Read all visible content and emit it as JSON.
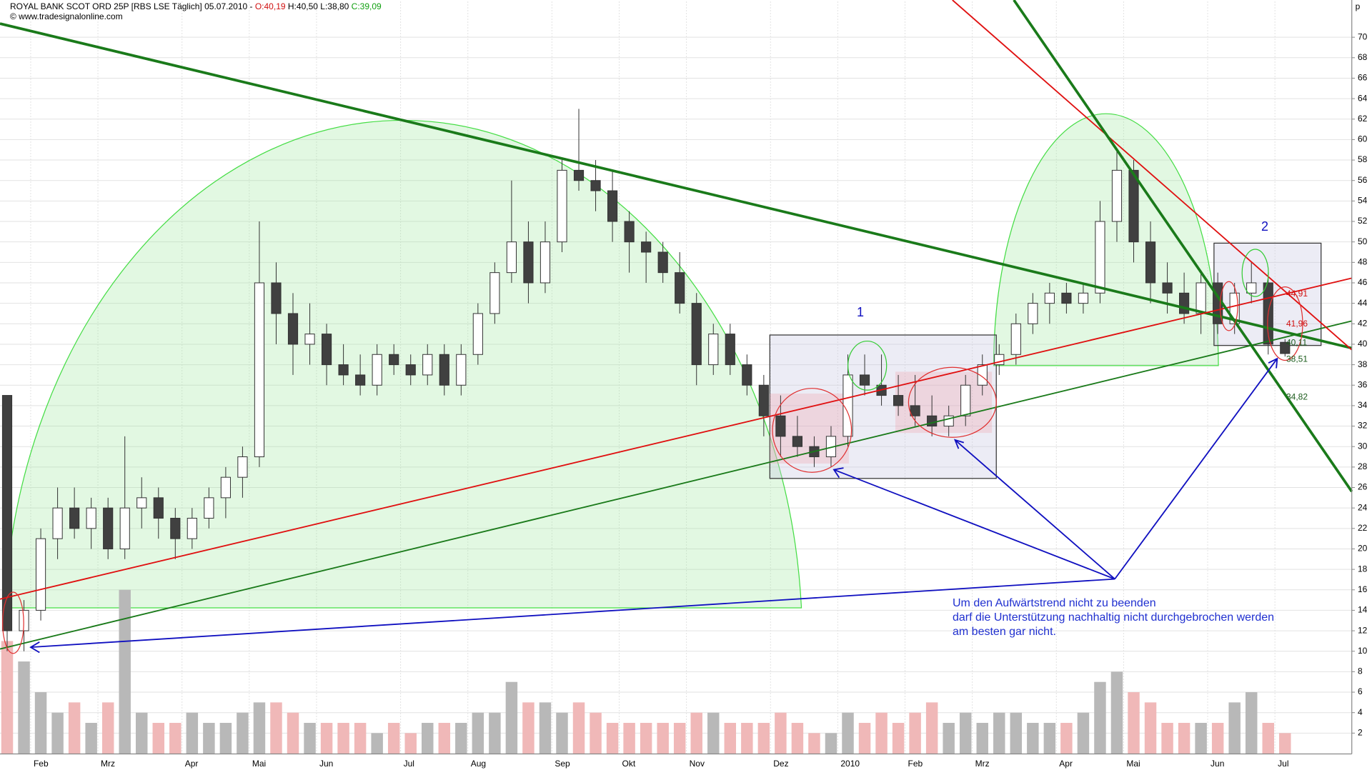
{
  "header": {
    "title": "ROYAL BANK SCOT ORD 25P [RBS LSE  Täglich] 05.07.2010 -",
    "open": "O:40,19",
    "high": "H:40,50",
    "low": "L:38,80",
    "close": "C:39,09",
    "source": "© www.tradesignalonline.com"
  },
  "chart_data": {
    "type": "candlestick",
    "axis_unit": "p",
    "categories": [
      null,
      null,
      "Feb",
      null,
      null,
      null,
      "Mrz",
      null,
      null,
      null,
      null,
      "Apr",
      null,
      null,
      null,
      "Mai",
      null,
      null,
      null,
      "Jun",
      null,
      null,
      null,
      null,
      "Jul",
      null,
      null,
      null,
      "Aug",
      null,
      null,
      null,
      null,
      "Sep",
      null,
      null,
      null,
      "Okt",
      null,
      null,
      null,
      "Nov",
      null,
      null,
      null,
      null,
      "Dez",
      null,
      null,
      null,
      "2010",
      null,
      null,
      null,
      "Feb",
      null,
      null,
      null,
      "Mrz",
      null,
      null,
      null,
      null,
      "Apr",
      null,
      null,
      null,
      "Mai",
      null,
      null,
      null,
      null,
      "Jun",
      null,
      null,
      null,
      "Jul"
    ],
    "open": [
      35,
      12,
      14,
      21,
      24,
      22,
      24,
      20,
      24,
      25,
      23,
      21,
      23,
      25,
      27,
      29,
      46,
      43,
      40,
      41,
      38,
      37,
      36,
      39,
      38,
      37,
      39,
      36,
      39,
      43,
      47,
      50,
      46,
      50,
      57,
      56,
      55,
      52,
      50,
      49,
      47,
      44,
      38,
      41,
      38,
      36,
      33,
      31,
      30,
      29,
      31,
      37,
      36,
      35,
      34,
      33,
      32,
      33,
      36,
      38,
      39,
      42,
      44,
      45,
      44,
      45,
      52,
      57,
      50,
      46,
      45,
      43,
      46,
      42,
      45,
      46,
      40.19
    ],
    "high": [
      35,
      15,
      22,
      26,
      26,
      25,
      25,
      31,
      27,
      26,
      24,
      24,
      26,
      28,
      30,
      52,
      48,
      45,
      44,
      42,
      40,
      39,
      40,
      40,
      39,
      40,
      40,
      40,
      44,
      48,
      56,
      52,
      52,
      58,
      63,
      58,
      57,
      53,
      51,
      50,
      49,
      45,
      42,
      42,
      39,
      37,
      35,
      33,
      31,
      32,
      39,
      39,
      39,
      37,
      37,
      35,
      34,
      37,
      39,
      40,
      43,
      45,
      46,
      46,
      46,
      54,
      59,
      58,
      52,
      48,
      47,
      47,
      47,
      46,
      48,
      47,
      40.5
    ],
    "low": [
      10,
      10,
      13,
      19,
      21,
      20,
      19,
      19,
      22,
      21,
      19,
      20,
      22,
      23,
      25,
      28,
      40,
      37,
      38,
      36,
      36,
      35,
      35,
      37,
      36,
      36,
      35,
      35,
      38,
      42,
      46,
      44,
      45,
      49,
      55,
      53,
      50,
      47,
      46,
      46,
      43,
      36,
      37,
      37,
      35,
      31,
      29,
      29,
      28,
      28,
      30,
      35,
      34,
      33,
      32,
      31,
      31,
      32,
      35,
      37,
      38,
      41,
      42,
      43,
      43,
      44,
      50,
      48,
      44,
      43,
      42,
      41,
      41,
      41,
      44,
      39,
      38.8
    ],
    "close": [
      12,
      14,
      21,
      24,
      22,
      24,
      20,
      24,
      25,
      23,
      21,
      23,
      25,
      27,
      29,
      46,
      43,
      40,
      41,
      38,
      37,
      36,
      39,
      38,
      37,
      39,
      36,
      39,
      43,
      47,
      50,
      46,
      50,
      57,
      56,
      55,
      52,
      50,
      49,
      47,
      44,
      38,
      41,
      38,
      36,
      33,
      31,
      30,
      29,
      31,
      37,
      36,
      35,
      34,
      33,
      32,
      33,
      36,
      38,
      39,
      42,
      44,
      45,
      44,
      45,
      52,
      57,
      50,
      46,
      45,
      43,
      46,
      42,
      45,
      46,
      40,
      39.09
    ],
    "volumes": [
      11,
      9,
      6,
      4,
      5,
      3,
      5,
      16,
      4,
      3,
      3,
      4,
      3,
      3,
      4,
      5,
      5,
      4,
      3,
      3,
      3,
      3,
      2,
      3,
      2,
      3,
      3,
      3,
      4,
      4,
      7,
      5,
      5,
      4,
      5,
      4,
      3,
      3,
      3,
      3,
      3,
      4,
      4,
      3,
      3,
      3,
      4,
      3,
      2,
      2,
      4,
      3,
      4,
      3,
      4,
      5,
      3,
      4,
      3,
      4,
      4,
      3,
      3,
      3,
      4,
      7,
      8,
      6,
      5,
      3,
      3,
      3,
      3,
      5,
      6,
      3,
      2
    ],
    "up_color": "#ffffff",
    "down_color": "#404040",
    "volume_up_color": "#b8b8b8",
    "volume_down_color": "#f0b8b8",
    "ylim": [
      0,
      73.5
    ],
    "yticks": [
      2,
      4,
      6,
      8,
      10,
      12,
      14,
      16,
      18,
      20,
      22,
      24,
      26,
      28,
      30,
      32,
      34,
      36,
      38,
      40,
      42,
      44,
      46,
      48,
      50,
      52,
      54,
      56,
      58,
      60,
      62,
      64,
      66,
      68,
      70
    ],
    "grid": true,
    "level_labels": [
      {
        "value": 44.91,
        "label": "44,91",
        "color": "#d01010"
      },
      {
        "value": 41.96,
        "label": "41,96",
        "color": "#d01010"
      },
      {
        "value": 40.11,
        "label": "40,11",
        "color": "#1a5a1a"
      },
      {
        "value": 38.51,
        "label": "38,51",
        "color": "#1a5a1a"
      },
      {
        "value": 34.82,
        "label": "34,82",
        "color": "#1a5a1a"
      }
    ],
    "annotations": [
      "1",
      "2"
    ],
    "note": [
      "Um den Aufwärtstrend nicht zu beenden",
      "darf die Unterstützung nachhaltig nicht durchgebrochen werden",
      "am besten gar nicht."
    ]
  }
}
